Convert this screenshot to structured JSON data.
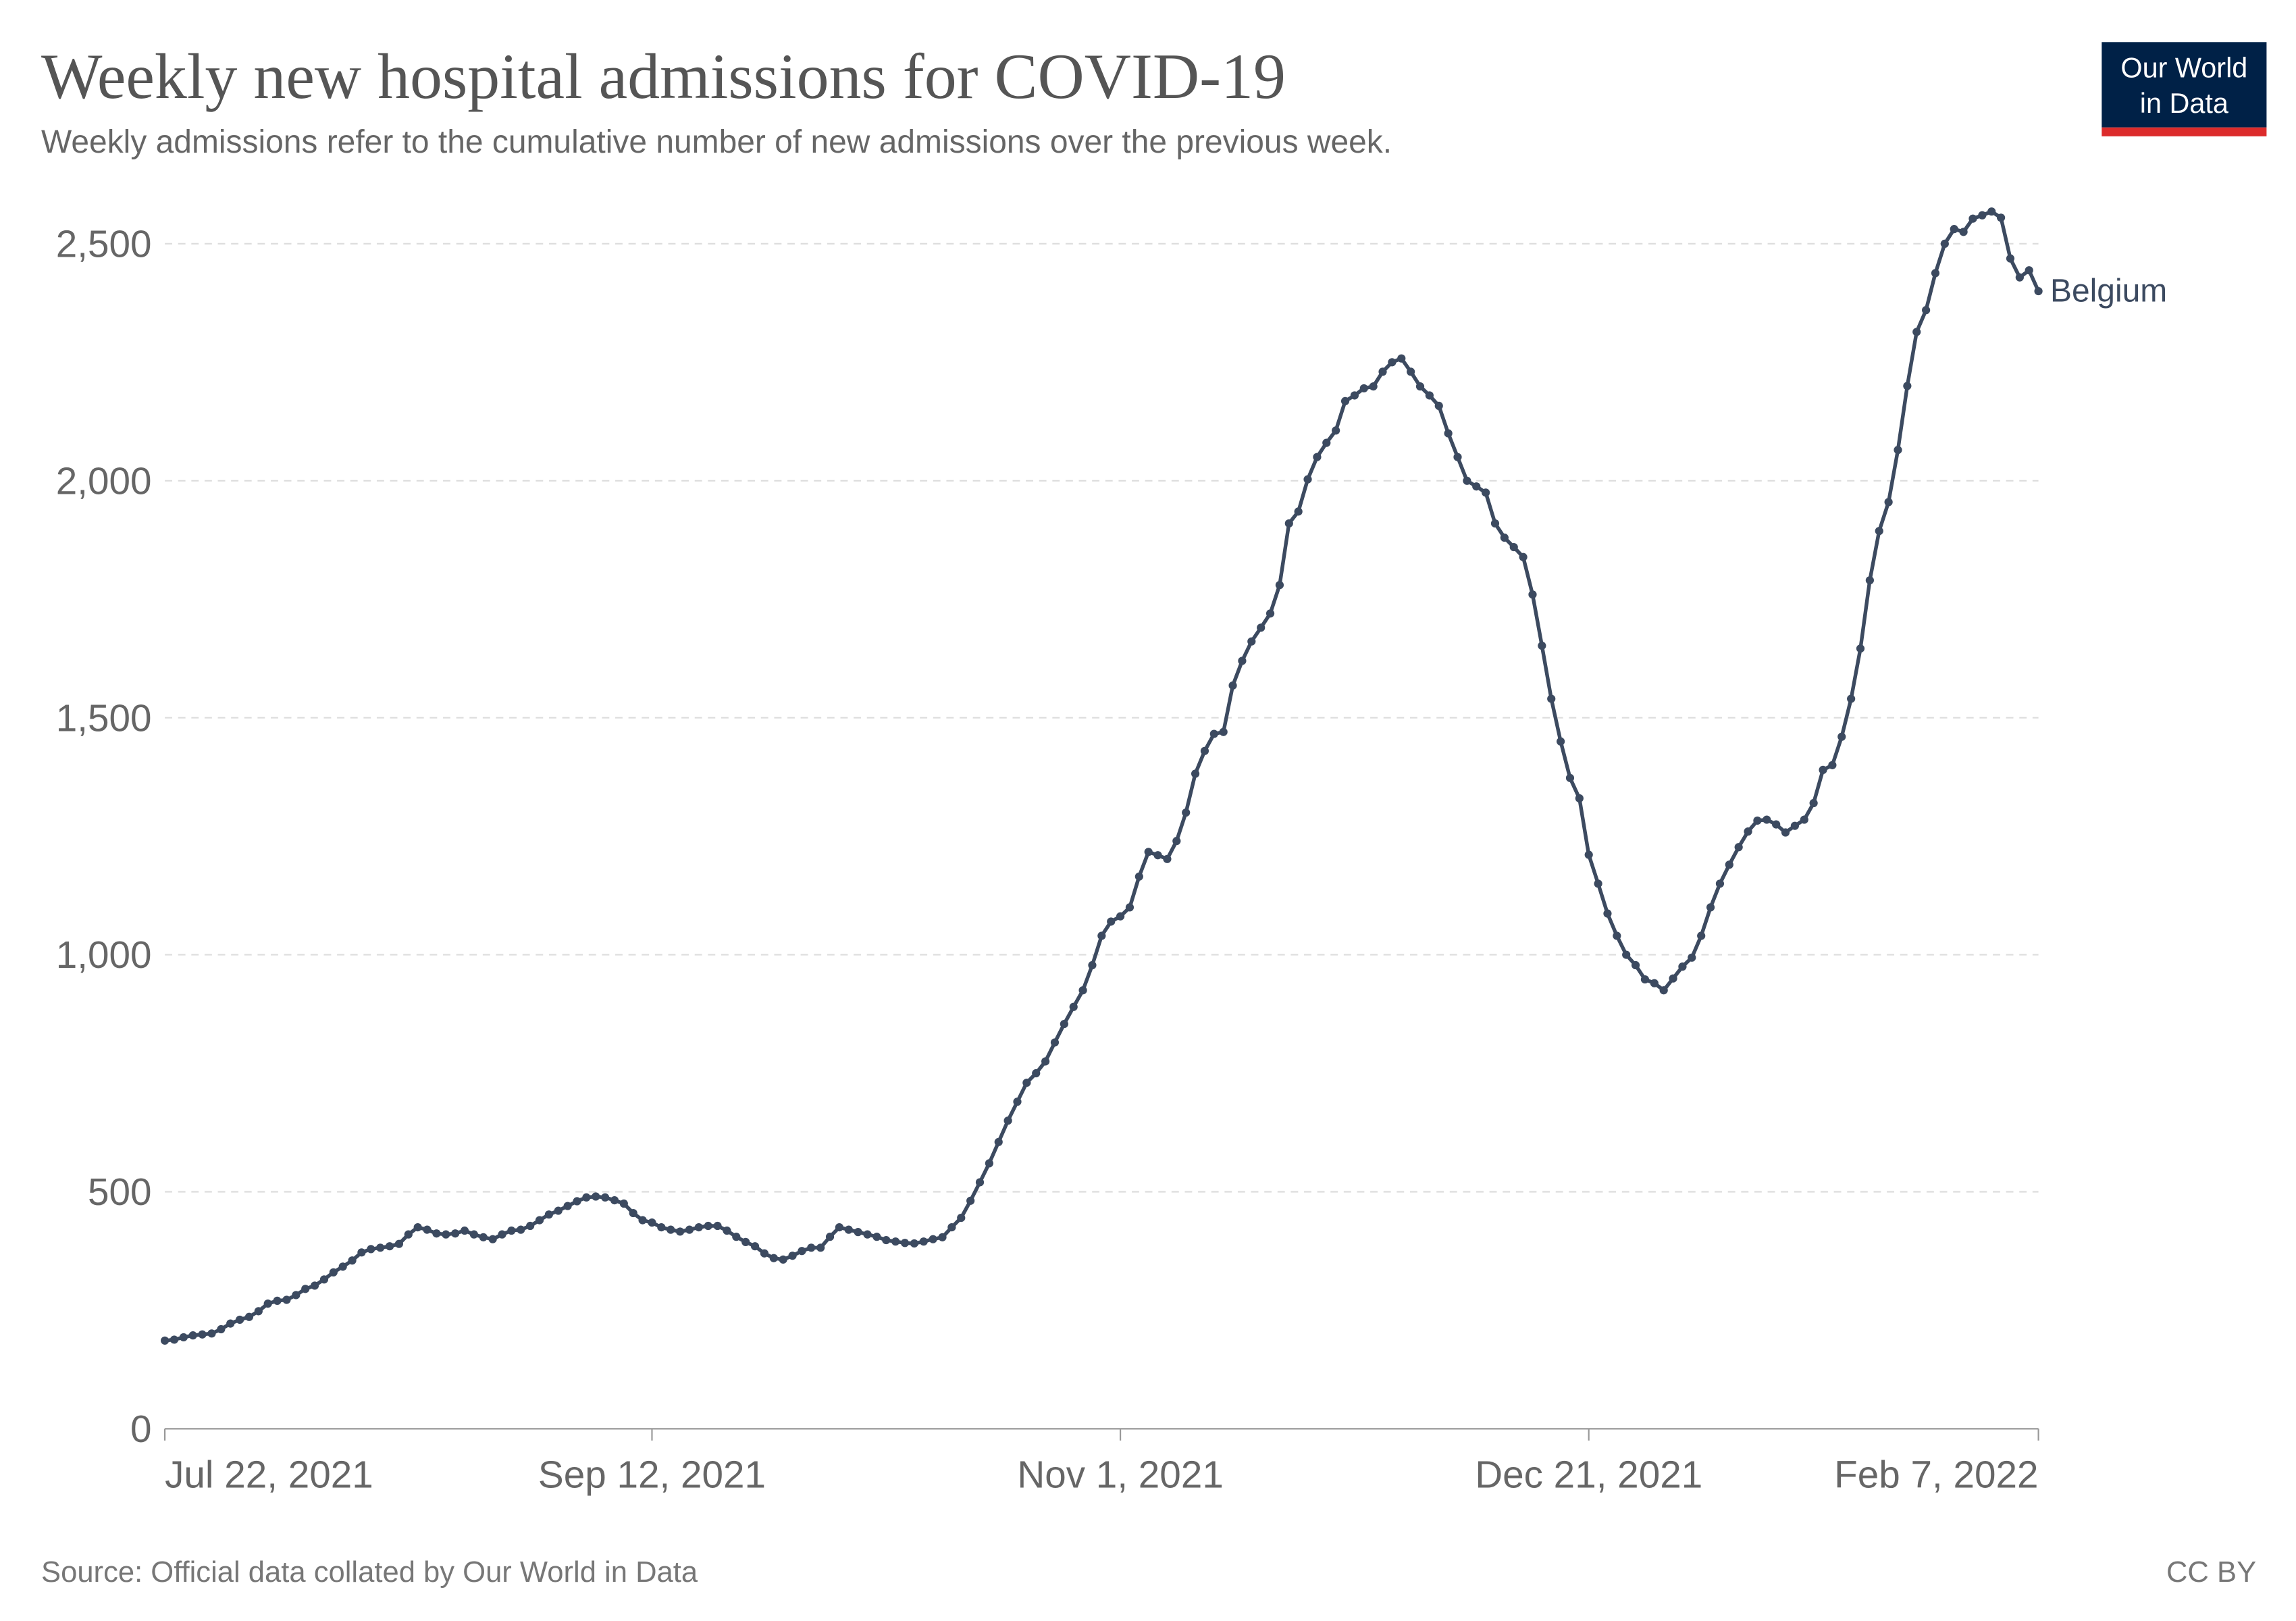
{
  "chart_data": {
    "type": "line",
    "title": "Weekly new hospital admissions for COVID-19",
    "subtitle": "Weekly admissions refer to the cumulative number of new admissions over the previous week.",
    "source": "Source: Official data collated by Our World in Data",
    "license": "CC BY",
    "logo": [
      "Our World",
      "in Data"
    ],
    "x": [
      "2021-07-22",
      "2021-07-23",
      "2021-07-24",
      "2021-07-25",
      "2021-07-26",
      "2021-07-27",
      "2021-07-28",
      "2021-07-29",
      "2021-07-30",
      "2021-07-31",
      "2021-08-01",
      "2021-08-02",
      "2021-08-03",
      "2021-08-04",
      "2021-08-05",
      "2021-08-06",
      "2021-08-07",
      "2021-08-08",
      "2021-08-09",
      "2021-08-10",
      "2021-08-11",
      "2021-08-12",
      "2021-08-13",
      "2021-08-14",
      "2021-08-15",
      "2021-08-16",
      "2021-08-17",
      "2021-08-18",
      "2021-08-19",
      "2021-08-20",
      "2021-08-21",
      "2021-08-22",
      "2021-08-23",
      "2021-08-24",
      "2021-08-25",
      "2021-08-26",
      "2021-08-27",
      "2021-08-28",
      "2021-08-29",
      "2021-08-30",
      "2021-08-31",
      "2021-09-01",
      "2021-09-02",
      "2021-09-03",
      "2021-09-04",
      "2021-09-05",
      "2021-09-06",
      "2021-09-07",
      "2021-09-08",
      "2021-09-09",
      "2021-09-10",
      "2021-09-11",
      "2021-09-12",
      "2021-09-13",
      "2021-09-14",
      "2021-09-15",
      "2021-09-16",
      "2021-09-17",
      "2021-09-18",
      "2021-09-19",
      "2021-09-20",
      "2021-09-21",
      "2021-09-22",
      "2021-09-23",
      "2021-09-24",
      "2021-09-25",
      "2021-09-26",
      "2021-09-27",
      "2021-09-28",
      "2021-09-29",
      "2021-09-30",
      "2021-10-01",
      "2021-10-02",
      "2021-10-03",
      "2021-10-04",
      "2021-10-05",
      "2021-10-06",
      "2021-10-07",
      "2021-10-08",
      "2021-10-09",
      "2021-10-10",
      "2021-10-11",
      "2021-10-12",
      "2021-10-13",
      "2021-10-14",
      "2021-10-15",
      "2021-10-16",
      "2021-10-17",
      "2021-10-18",
      "2021-10-19",
      "2021-10-20",
      "2021-10-21",
      "2021-10-22",
      "2021-10-23",
      "2021-10-24",
      "2021-10-25",
      "2021-10-26",
      "2021-10-27",
      "2021-10-28",
      "2021-10-29",
      "2021-10-30",
      "2021-10-31",
      "2021-11-01",
      "2021-11-02",
      "2021-11-03",
      "2021-11-04",
      "2021-11-05",
      "2021-11-06",
      "2021-11-07",
      "2021-11-08",
      "2021-11-09",
      "2021-11-10",
      "2021-11-11",
      "2021-11-12",
      "2021-11-13",
      "2021-11-14",
      "2021-11-15",
      "2021-11-16",
      "2021-11-17",
      "2021-11-18",
      "2021-11-19",
      "2021-11-20",
      "2021-11-21",
      "2021-11-22",
      "2021-11-23",
      "2021-11-24",
      "2021-11-25",
      "2021-11-26",
      "2021-11-27",
      "2021-11-28",
      "2021-11-29",
      "2021-11-30",
      "2021-12-01",
      "2021-12-02",
      "2021-12-03",
      "2021-12-04",
      "2021-12-05",
      "2021-12-06",
      "2021-12-07",
      "2021-12-08",
      "2021-12-09",
      "2021-12-10",
      "2021-12-11",
      "2021-12-12",
      "2021-12-13",
      "2021-12-14",
      "2021-12-15",
      "2021-12-16",
      "2021-12-17",
      "2021-12-18",
      "2021-12-19",
      "2021-12-20",
      "2021-12-21",
      "2021-12-22",
      "2021-12-23",
      "2021-12-24",
      "2021-12-25",
      "2021-12-26",
      "2021-12-27",
      "2021-12-28",
      "2021-12-29",
      "2021-12-30",
      "2021-12-31",
      "2022-01-01",
      "2022-01-02",
      "2022-01-03",
      "2022-01-04",
      "2022-01-05",
      "2022-01-06",
      "2022-01-07",
      "2022-01-08",
      "2022-01-09",
      "2022-01-10",
      "2022-01-11",
      "2022-01-12",
      "2022-01-13",
      "2022-01-14",
      "2022-01-15",
      "2022-01-16",
      "2022-01-17",
      "2022-01-18",
      "2022-01-19",
      "2022-01-20",
      "2022-01-21",
      "2022-01-22",
      "2022-01-23",
      "2022-01-24",
      "2022-01-25",
      "2022-01-26",
      "2022-01-27",
      "2022-01-28",
      "2022-01-29",
      "2022-01-30",
      "2022-01-31",
      "2022-02-01",
      "2022-02-02",
      "2022-02-03",
      "2022-02-04",
      "2022-02-05",
      "2022-02-06",
      "2022-02-07"
    ],
    "series": [
      {
        "name": "Belgium",
        "color": "#3c4a60",
        "values": [
          186,
          188,
          193,
          197,
          199,
          201,
          210,
          222,
          230,
          236,
          248,
          264,
          270,
          272,
          282,
          295,
          302,
          315,
          330,
          342,
          355,
          372,
          379,
          382,
          385,
          390,
          410,
          425,
          420,
          412,
          410,
          412,
          418,
          410,
          404,
          400,
          410,
          418,
          420,
          428,
          440,
          452,
          460,
          470,
          480,
          488,
          490,
          488,
          482,
          475,
          455,
          440,
          435,
          425,
          420,
          416,
          420,
          425,
          428,
          428,
          418,
          405,
          394,
          385,
          370,
          360,
          357,
          365,
          375,
          382,
          382,
          405,
          425,
          420,
          415,
          410,
          405,
          398,
          395,
          392,
          391,
          395,
          400,
          404,
          425,
          445,
          481,
          520,
          560,
          605,
          650,
          690,
          730,
          750,
          775,
          815,
          854,
          890,
          925,
          978,
          1040,
          1070,
          1081,
          1100,
          1165,
          1217,
          1210,
          1202,
          1240,
          1300,
          1382,
          1430,
          1466,
          1470,
          1568,
          1620,
          1661,
          1690,
          1720,
          1780,
          1910,
          1935,
          2003,
          2050,
          2080,
          2106,
          2168,
          2180,
          2195,
          2199,
          2230,
          2250,
          2258,
          2230,
          2199,
          2180,
          2158,
          2100,
          2050,
          2000,
          1988,
          1975,
          1910,
          1880,
          1860,
          1839,
          1760,
          1652,
          1540,
          1450,
          1373,
          1330,
          1211,
          1150,
          1087,
          1040,
          1000,
          978,
          948,
          940,
          925,
          950,
          975,
          994,
          1040,
          1100,
          1150,
          1190,
          1227,
          1260,
          1283,
          1285,
          1275,
          1258,
          1272,
          1285,
          1320,
          1390,
          1400,
          1460,
          1540,
          1646,
          1790,
          1894,
          1955,
          2065,
          2200,
          2314,
          2360,
          2438,
          2500,
          2531,
          2525,
          2553,
          2560,
          2568,
          2555,
          2469,
          2429,
          2444,
          2400
        ]
      }
    ],
    "xlim": [
      "2021-07-22",
      "2022-02-07"
    ],
    "xticks": [
      {
        "value": "2021-07-22",
        "label": "Jul 22, 2021"
      },
      {
        "value": "2021-09-12",
        "label": "Sep 12, 2021"
      },
      {
        "value": "2021-11-01",
        "label": "Nov 1, 2021"
      },
      {
        "value": "2021-12-21",
        "label": "Dec 21, 2021"
      },
      {
        "value": "2022-02-07",
        "label": "Feb 7, 2022"
      }
    ],
    "ylim": [
      0,
      2500
    ],
    "yticks": [
      0,
      500,
      {
        "value": 1000,
        "label": "1,000"
      },
      {
        "value": 1500,
        "label": "1,500"
      },
      {
        "value": 2000,
        "label": "2,000"
      },
      {
        "value": 2500,
        "label": "2,500"
      }
    ],
    "grid": true
  }
}
